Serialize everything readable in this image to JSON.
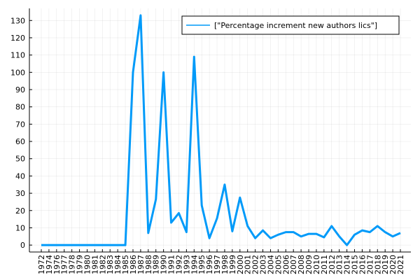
{
  "chart_data": {
    "type": "line",
    "categories": [
      "1972",
      "1974",
      "1976",
      "1977",
      "1978",
      "1979",
      "1980",
      "1981",
      "1982",
      "1983",
      "1984",
      "1985",
      "1986",
      "1987",
      "1988",
      "1989",
      "1990",
      "1991",
      "1992",
      "1993",
      "1994",
      "1995",
      "1996",
      "1997",
      "1998",
      "1999",
      "2000",
      "2001",
      "2002",
      "2003",
      "2004",
      "2005",
      "2006",
      "2007",
      "2008",
      "2009",
      "2010",
      "2011",
      "2012",
      "2013",
      "2014",
      "2015",
      "2016",
      "2017",
      "2018",
      "2019",
      "2020",
      "2021"
    ],
    "series": [
      {
        "name": "[\"Percentage increment new authors lics\"]",
        "color": "#009af9",
        "values": [
          0,
          0,
          0,
          0,
          0,
          0,
          0,
          0,
          0,
          0,
          0,
          0,
          100,
          133,
          7,
          26.5,
          100,
          13,
          18.5,
          7.5,
          109,
          23,
          4,
          15.5,
          35,
          8,
          27.5,
          11,
          4,
          8.5,
          4,
          6,
          7.5,
          7.5,
          5,
          6.5,
          6.5,
          4.5,
          11,
          5,
          0,
          6,
          8.5,
          7.5,
          11,
          7.5,
          5,
          7
        ]
      }
    ],
    "ylim": [
      -4,
      137
    ],
    "yticks": [
      0,
      10,
      20,
      30,
      40,
      50,
      60,
      70,
      80,
      90,
      100,
      110,
      120,
      130
    ],
    "grid": true,
    "legend": "top-right"
  }
}
